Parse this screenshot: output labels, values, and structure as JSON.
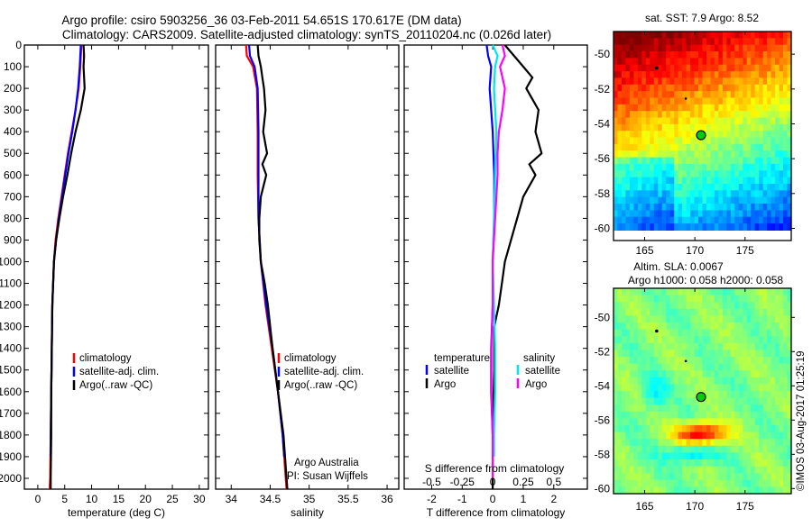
{
  "title_line1": "Argo profile: csiro 5903256_36 03-Feb-2011 54.651S 170.617E (DM data)",
  "title_line2": "Climatology: CARS2009. Satellite-adjusted climatology: synTS_20110204.nc (0.026d later)",
  "credit": "©IMOS 03-Aug-2017 01:25:19",
  "colors": {
    "climatology": "#ff0000",
    "satellite": "#0000ff",
    "argo": "#000000",
    "sal_satellite": "#00e5ee",
    "sal_argo": "#ff00ff"
  },
  "chart_data": [
    {
      "type": "line",
      "name": "temperature",
      "xlabel": "temperature (deg C)",
      "ylabel": "depth",
      "xlim": [
        -2.5,
        31.7
      ],
      "ylim": [
        2050,
        0
      ],
      "xticks": [
        0,
        5,
        10,
        15,
        20,
        25,
        30
      ],
      "yticks": [
        0,
        100,
        200,
        300,
        400,
        500,
        600,
        700,
        800,
        900,
        1000,
        1100,
        1200,
        1300,
        1400,
        1500,
        1600,
        1700,
        1800,
        1900,
        2000
      ],
      "legend": [
        "climatology",
        "satellite-adj. clim.",
        "Argo(..raw -QC)"
      ],
      "legend_position": "lower-middle",
      "series": [
        {
          "name": "climatology",
          "color": "#ff0000",
          "depth": [
            0,
            100,
            200,
            300,
            400,
            500,
            600,
            700,
            800,
            900,
            1000,
            1200,
            1400,
            1600,
            1800,
            2000,
            2050
          ],
          "values": [
            8.1,
            7.9,
            7.6,
            7.0,
            6.3,
            5.6,
            5.0,
            4.4,
            3.8,
            3.3,
            3.0,
            2.7,
            2.6,
            2.5,
            2.4,
            2.3,
            2.2
          ]
        },
        {
          "name": "satellite-adj. clim.",
          "color": "#0000ff",
          "depth": [
            0,
            100,
            200,
            300,
            400,
            500,
            600,
            700,
            800,
            900,
            1000,
            1200,
            1400,
            1600,
            1800,
            1900
          ],
          "values": [
            8.0,
            7.8,
            7.5,
            7.0,
            6.4,
            5.7,
            5.1,
            4.5,
            3.9,
            3.4,
            3.0,
            2.7,
            2.6,
            2.5,
            2.4,
            2.4
          ]
        },
        {
          "name": "Argo(..raw -QC)",
          "color": "#000000",
          "depth": [
            0,
            50,
            100,
            200,
            300,
            400,
            500,
            600,
            700,
            800,
            900,
            1000,
            1200,
            1400,
            1600,
            1800,
            2000,
            2050
          ],
          "values": [
            8.5,
            8.6,
            8.5,
            8.7,
            8.0,
            7.0,
            6.2,
            5.5,
            4.7,
            4.0,
            3.4,
            3.0,
            2.7,
            2.6,
            2.5,
            2.5,
            2.4,
            2.4
          ]
        }
      ]
    },
    {
      "type": "line",
      "name": "salinity",
      "xlabel": "salinity",
      "xlim": [
        33.8,
        36.15
      ],
      "ylim": [
        2050,
        0
      ],
      "xticks": [
        34,
        34.5,
        35,
        35.5,
        36
      ],
      "xticklabels": [
        "34",
        "34.5",
        "35",
        "35.5",
        "36"
      ],
      "legend": [
        "climatology",
        "satellite-adj. clim.",
        "Argo(..raw -QC)"
      ],
      "annotations": [
        "Argo Australia",
        "PI: Susan Wijffels"
      ],
      "series": [
        {
          "name": "climatology",
          "color": "#ff0000",
          "depth": [
            0,
            50,
            100,
            200,
            400,
            600,
            800,
            1000,
            1200,
            1400,
            1600,
            1800,
            2000,
            2050
          ],
          "values": [
            34.19,
            34.2,
            34.28,
            34.33,
            34.34,
            34.34,
            34.35,
            34.38,
            34.44,
            34.52,
            34.6,
            34.66,
            34.7,
            34.71
          ]
        },
        {
          "name": "satellite-adj. clim.",
          "color": "#0000ff",
          "depth": [
            0,
            50,
            100,
            200,
            400,
            600,
            800,
            1000,
            1200,
            1400,
            1600,
            1800,
            1900
          ],
          "values": [
            34.23,
            34.24,
            34.3,
            34.34,
            34.35,
            34.35,
            34.35,
            34.38,
            34.45,
            34.53,
            34.6,
            34.66,
            34.68
          ]
        },
        {
          "name": "Argo(..raw -QC)",
          "color": "#000000",
          "depth": [
            0,
            50,
            100,
            150,
            200,
            300,
            400,
            500,
            550,
            600,
            700,
            800,
            900,
            1000,
            1100,
            1200,
            1400,
            1600,
            1800,
            2000,
            2050
          ],
          "values": [
            34.34,
            34.35,
            34.38,
            34.4,
            34.42,
            34.44,
            34.41,
            34.46,
            34.4,
            34.45,
            34.38,
            34.36,
            34.36,
            34.38,
            34.43,
            34.47,
            34.53,
            34.6,
            34.67,
            34.71,
            34.72
          ]
        }
      ]
    },
    {
      "type": "line",
      "name": "difference",
      "xlabel": "T difference from climatology",
      "xlabel_top": "S difference from climatology",
      "xlim": [
        -2.9,
        3.1
      ],
      "ylim": [
        2050,
        0
      ],
      "xticks": [
        -2,
        -1,
        0,
        1,
        2
      ],
      "s_xticks": [
        -0.5,
        -0.25,
        0,
        0.25,
        0.5
      ],
      "s_xticklabels": [
        "-0.5",
        "-0.25",
        "0",
        "0.25",
        "0.5"
      ],
      "legend_temperature_title": "temperature",
      "legend_salinity_title": "salinity",
      "legend": [
        "satellite",
        "Argo",
        "satellite",
        "Argo"
      ],
      "series": [
        {
          "name": "T satellite",
          "color": "#0000ff",
          "variable": "T",
          "depth": [
            0,
            50,
            100,
            200,
            400,
            600,
            800,
            1000,
            1200,
            1400,
            1600,
            1800,
            1900
          ],
          "values": [
            -0.2,
            -0.15,
            -0.05,
            -0.1,
            0,
            0.05,
            0.05,
            0,
            0,
            -0.05,
            -0.05,
            0,
            0
          ]
        },
        {
          "name": "T Argo",
          "color": "#000000",
          "variable": "T",
          "depth": [
            0,
            50,
            100,
            150,
            200,
            300,
            400,
            500,
            550,
            600,
            700,
            800,
            900,
            1000,
            1100,
            1200,
            1300,
            1500,
            1800,
            2000,
            2050
          ],
          "values": [
            0.4,
            0.7,
            1.0,
            1.3,
            1.1,
            1.5,
            1.4,
            1.6,
            1.2,
            1.4,
            1.0,
            0.8,
            0.6,
            0.4,
            0.3,
            0.2,
            0.05,
            0.05,
            0,
            0,
            0
          ]
        },
        {
          "name": "S satellite",
          "color": "#00e5ee",
          "variable": "S",
          "depth": [
            0,
            50,
            100,
            200,
            400,
            600,
            800,
            1000,
            1200,
            1400,
            1600,
            1800,
            1900
          ],
          "values": [
            0.0,
            0.04,
            0.02,
            0.01,
            0.03,
            0.02,
            0.01,
            0.0,
            0.01,
            0.02,
            0.02,
            0.01,
            0.01
          ]
        },
        {
          "name": "S Argo",
          "color": "#ff00ff",
          "variable": "S",
          "depth": [
            0,
            50,
            100,
            200,
            300,
            400,
            500,
            600,
            800,
            1000,
            1200,
            1400,
            1600,
            1800,
            2000
          ],
          "values": [
            0.08,
            0.1,
            0.06,
            0.1,
            0.08,
            0.05,
            0.04,
            0.04,
            0.02,
            0.0,
            0.0,
            -0.01,
            -0.01,
            0.0,
            0.0
          ]
        }
      ]
    },
    {
      "type": "heatmap",
      "name": "sst-map",
      "title": "sat. SST: 7.9 Argo: 8.52",
      "xlim": [
        161.9,
        179.6
      ],
      "ylim": [
        -60.7,
        -48.7
      ],
      "xticks": [
        165,
        170,
        175
      ],
      "yticks": [
        -50,
        -52,
        -54,
        -56,
        -58,
        -60
      ],
      "float_position": {
        "lon": 170.617,
        "lat": -54.651
      }
    },
    {
      "type": "heatmap",
      "name": "sla-map",
      "title_line1": "Altim. SLA: 0.0067",
      "title_line2": "Argo h1000: 0.058 h2000: 0.058",
      "xlim": [
        161.9,
        179.6
      ],
      "ylim": [
        -60.3,
        -48.3
      ],
      "xticks": [
        165,
        170,
        175
      ],
      "yticks": [
        -50,
        -52,
        -54,
        -56,
        -58,
        -60
      ],
      "float_position": {
        "lon": 170.617,
        "lat": -54.651
      }
    }
  ]
}
